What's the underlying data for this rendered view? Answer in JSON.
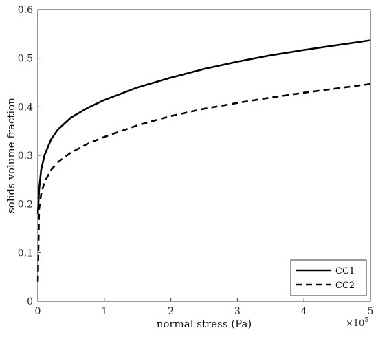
{
  "chart_data": {
    "type": "line",
    "xlabel": "normal stress (Pa)",
    "ylabel": "solids volume fraction",
    "x_multiplier_label": "×10",
    "x_multiplier_exponent": "5",
    "xlim": [
      0,
      5
    ],
    "ylim": [
      0,
      0.6
    ],
    "x_ticks": [
      0,
      1,
      2,
      3,
      4,
      5
    ],
    "x_tick_labels": [
      "0",
      "1",
      "2",
      "3",
      "4",
      "5"
    ],
    "y_ticks": [
      0,
      0.1,
      0.2,
      0.3,
      0.4,
      0.5,
      0.6
    ],
    "y_tick_labels": [
      "0",
      "0.1",
      "0.2",
      "0.3",
      "0.4",
      "0.5",
      "0.6"
    ],
    "grid": false,
    "legend_position": "bottom-right",
    "series": [
      {
        "name": "CC1",
        "style": "solid",
        "color": "#000000",
        "x": [
          0.001,
          0.02,
          0.05,
          0.1,
          0.2,
          0.3,
          0.5,
          0.75,
          1.0,
          1.5,
          2.0,
          2.5,
          3.0,
          3.5,
          4.0,
          4.5,
          5.0
        ],
        "y": [
          0.18,
          0.23,
          0.27,
          0.3,
          0.333,
          0.353,
          0.378,
          0.398,
          0.414,
          0.44,
          0.46,
          0.478,
          0.493,
          0.506,
          0.517,
          0.527,
          0.537
        ]
      },
      {
        "name": "CC2",
        "style": "dashed",
        "color": "#000000",
        "x": [
          0.001,
          0.02,
          0.05,
          0.1,
          0.2,
          0.3,
          0.5,
          0.75,
          1.0,
          1.5,
          2.0,
          2.5,
          3.0,
          3.5,
          4.0,
          4.5,
          5.0
        ],
        "y": [
          0.04,
          0.19,
          0.22,
          0.245,
          0.27,
          0.286,
          0.306,
          0.324,
          0.338,
          0.362,
          0.381,
          0.396,
          0.408,
          0.419,
          0.429,
          0.438,
          0.447
        ]
      }
    ]
  }
}
